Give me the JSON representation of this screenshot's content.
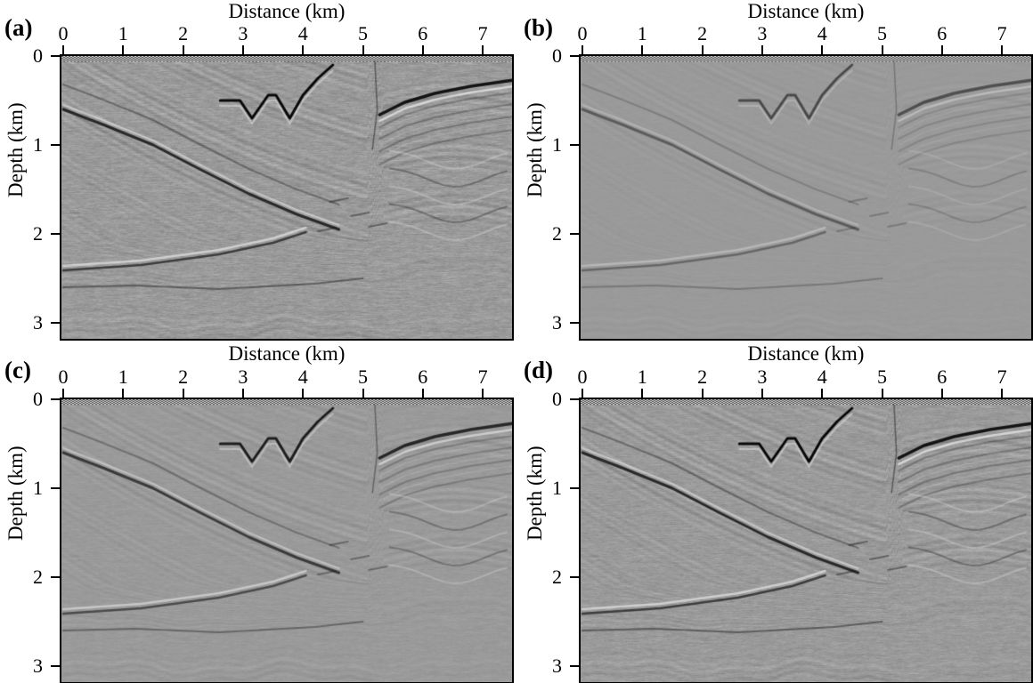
{
  "figure": {
    "background": "#ffffff",
    "text_color": "#000000",
    "image_base_gray": "#9a9a9a",
    "x_axis_title": "Distance (km)",
    "y_axis_title": "Depth (km)",
    "xticks": [
      "0",
      "1",
      "2",
      "3",
      "4",
      "5",
      "6",
      "7"
    ],
    "yticks": [
      "0",
      "1",
      "2",
      "3"
    ],
    "panels": [
      {
        "label": "(a)",
        "render": {
          "bg": 1.0,
          "noise": 1.0,
          "curves": 1.0
        }
      },
      {
        "label": "(b)",
        "render": {
          "bg": 0.33,
          "noise": 0.18,
          "curves": 0.55
        }
      },
      {
        "label": "(c)",
        "render": {
          "bg": 0.62,
          "noise": 0.42,
          "curves": 0.85
        }
      },
      {
        "label": "(d)",
        "render": {
          "bg": 0.95,
          "noise": 0.8,
          "curves": 1.0
        }
      }
    ]
  },
  "chart_data": [
    {
      "type": "heatmap",
      "title": "(a)",
      "xlabel": "Distance (km)",
      "ylabel": "Depth (km)",
      "xlim": [
        0,
        7.5
      ],
      "ylim": [
        3.2,
        0
      ],
      "xticks": [
        0,
        1,
        2,
        3,
        4,
        5,
        6,
        7
      ],
      "yticks": [
        0,
        1,
        2,
        3
      ],
      "colormap": "grayscale",
      "relative_amplitude": "high",
      "content": "Seismic depth-migrated section: strong dipping reflectors descending from upper-left toward centre, zigzag thrust-fault reflector near 3-4.5 km distance at 0.4-0.7 km depth, near-vertical fault at ~5.2 km, strong shallow reflector on right block at ~0.3-0.65 km depth, gentle sub-horizontal reflectors below ~2 km, dense near-surface migration artifacts along the top edge."
    },
    {
      "type": "heatmap",
      "title": "(b)",
      "xlabel": "Distance (km)",
      "ylabel": "Depth (km)",
      "xlim": [
        0,
        7.5
      ],
      "ylim": [
        3.2,
        0
      ],
      "xticks": [
        0,
        1,
        2,
        3,
        4,
        5,
        6,
        7
      ],
      "yticks": [
        0,
        1,
        2,
        3
      ],
      "colormap": "grayscale",
      "relative_amplitude": "low (smooth, faint reflectivity)",
      "content": "Same subsurface structures as (a) but much fainter and smoother: weak dipping left-side reflectors, visible zigzag thrust reflector, vertical fault at ~5.2 km, dark shallow reflector on right block, very weak deep reflectivity."
    },
    {
      "type": "heatmap",
      "title": "(c)",
      "xlabel": "Distance (km)",
      "ylabel": "Depth (km)",
      "xlim": [
        0,
        7.5
      ],
      "ylim": [
        3.2,
        0
      ],
      "xticks": [
        0,
        1,
        2,
        3,
        4,
        5,
        6,
        7
      ],
      "yticks": [
        0,
        1,
        2,
        3
      ],
      "colormap": "grayscale",
      "relative_amplitude": "medium",
      "content": "Same structures with intermediate amplitude: crisp zigzag thrust reflector, strong right-block shallow reflector, moderate dipping left-side package, subdued deep reflectors."
    },
    {
      "type": "heatmap",
      "title": "(d)",
      "xlabel": "Distance (km)",
      "ylabel": "Depth (km)",
      "xlim": [
        0,
        7.5
      ],
      "ylim": [
        3.2,
        0
      ],
      "xticks": [
        0,
        1,
        2,
        3,
        4,
        5,
        6,
        7
      ],
      "yticks": [
        0,
        1,
        2,
        3
      ],
      "colormap": "grayscale",
      "relative_amplitude": "high (similar to a)",
      "content": "Same structures with high amplitude and rich fine layering, comparable to panel (a): strong dipping reflectors, zigzag thrust reflector, vertical fault at ~5.2 km, strong shallow right-block reflector, deep gentle reflectors."
    }
  ]
}
